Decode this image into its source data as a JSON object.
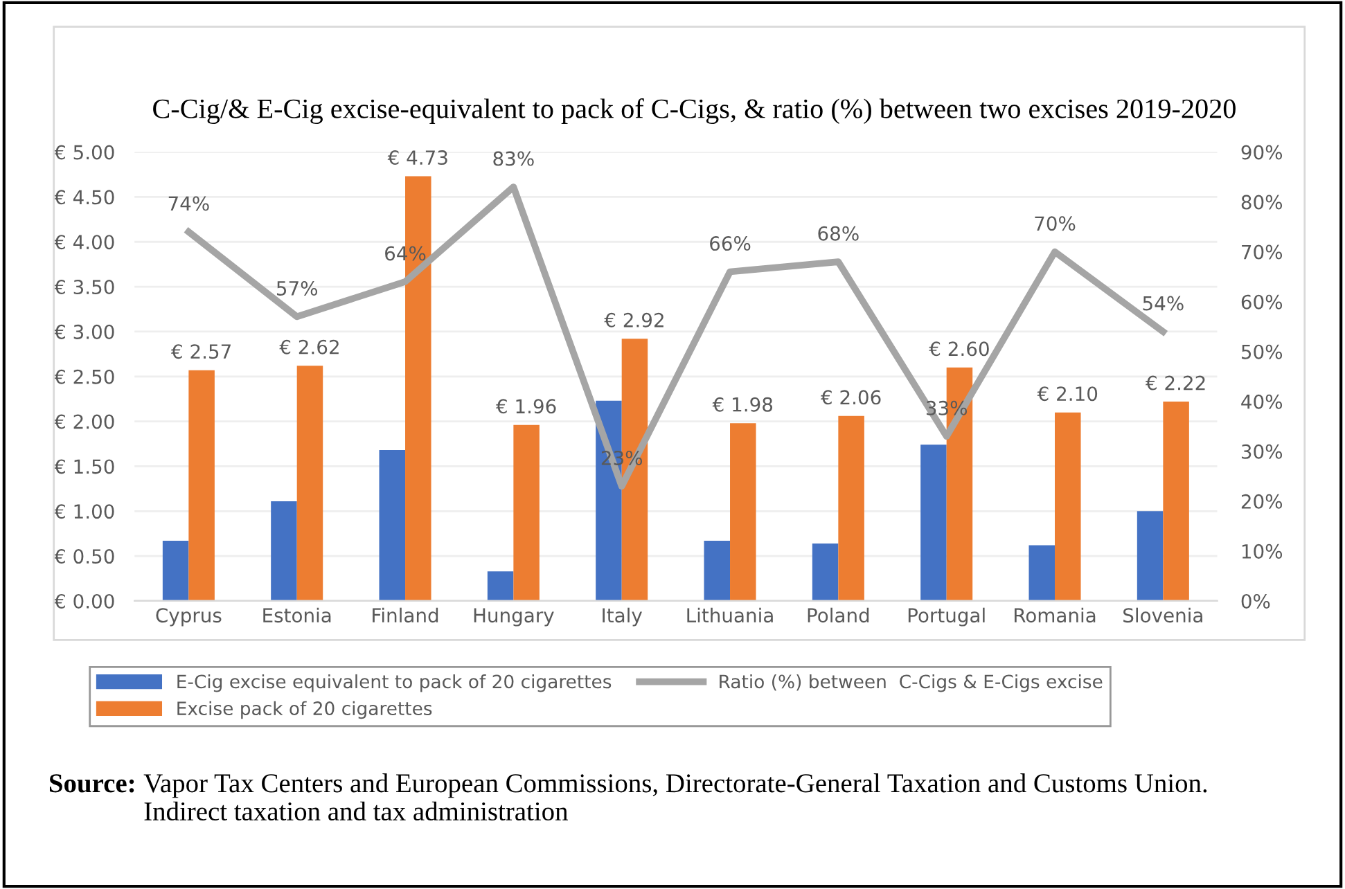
{
  "chart_data": {
    "type": "bar",
    "title": "C-Cig/& E-Cig excise-equivalent to pack of C-Cigs, & ratio (%) between two excises 2019-2020",
    "categories": [
      "Cyprus",
      "Estonia",
      "Finland",
      "Hungary",
      "Italy",
      "Lithuania",
      "Poland",
      "Portugal",
      "Romania",
      "Slovenia"
    ],
    "series": [
      {
        "name": "E-Cig excise equivalent to pack of 20 cigarettes",
        "color": "#4472c4",
        "values": [
          0.67,
          1.11,
          1.68,
          0.33,
          2.23,
          0.67,
          0.64,
          1.74,
          0.62,
          1.0
        ]
      },
      {
        "name": "Excise pack of 20 cigarettes",
        "color": "#ed7d31",
        "values": [
          2.57,
          2.62,
          4.73,
          1.96,
          2.92,
          1.98,
          2.06,
          2.6,
          2.1,
          2.22
        ],
        "value_labels": [
          "€ 2.57",
          "€ 2.62",
          "€ 4.73",
          "€ 1.96",
          "€ 2.92",
          "€ 1.98",
          "€ 2.06",
          "€ 2.60",
          "€ 2.10",
          "€ 2.22"
        ]
      },
      {
        "name": "Ratio (%) between  C-Cigs & E-Cigs excise",
        "color": "#a5a5a5",
        "type": "line",
        "axis": "y2",
        "values": [
          74,
          57,
          64,
          83,
          23,
          66,
          68,
          33,
          70,
          54
        ],
        "value_labels": [
          "74%",
          "57%",
          "64%",
          "83%",
          "23%",
          "66%",
          "68%",
          "33%",
          "70%",
          "54%"
        ]
      }
    ],
    "ylim": [
      0,
      5
    ],
    "yticks": [
      {
        "value": 0,
        "label": "€ 0.00"
      },
      {
        "value": 0.5,
        "label": "€ 0.50"
      },
      {
        "value": 1,
        "label": "€ 1.00"
      },
      {
        "value": 1.5,
        "label": "€ 1.50"
      },
      {
        "value": 2,
        "label": "€ 2.00"
      },
      {
        "value": 2.5,
        "label": "€ 2.50"
      },
      {
        "value": 3,
        "label": "€ 3.00"
      },
      {
        "value": 3.5,
        "label": "€ 3.50"
      },
      {
        "value": 4,
        "label": "€ 4.00"
      },
      {
        "value": 4.5,
        "label": "€ 4.50"
      },
      {
        "value": 5,
        "label": "€ 5.00"
      }
    ],
    "y2lim": [
      0,
      90
    ],
    "y2ticks": [
      {
        "value": 0,
        "label": "0%"
      },
      {
        "value": 10,
        "label": "10%"
      },
      {
        "value": 20,
        "label": "20%"
      },
      {
        "value": 30,
        "label": "30%"
      },
      {
        "value": 40,
        "label": "40%"
      },
      {
        "value": 50,
        "label": "50%"
      },
      {
        "value": 60,
        "label": "60%"
      },
      {
        "value": 70,
        "label": "70%"
      },
      {
        "value": 80,
        "label": "80%"
      },
      {
        "value": 90,
        "label": "90%"
      }
    ],
    "grid": "y",
    "legend": "bottom",
    "marker": "none",
    "annotations": [
      "Source:",
      "Vapor Tax Centers and European Commissions, Directorate-General Taxation and Customs Union. Indirect taxation and tax administration"
    ]
  }
}
